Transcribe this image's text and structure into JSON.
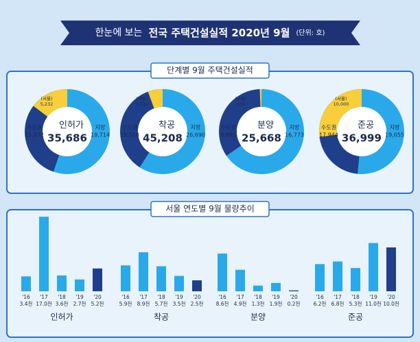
{
  "header": {
    "title_prefix": "한눈에 보는",
    "title_main": "전국 주택건설실적 2020년 9월",
    "unit": "(단위: 호)"
  },
  "colors": {
    "capital": "#1f3f8a",
    "local": "#2aa9ea",
    "seoul": "#f8cf3a",
    "latest": "#1f3f8a"
  },
  "stage_section": {
    "title": "단계별 9월 주택건설실적",
    "stages": [
      {
        "name": "인허가",
        "total": {
          "value": 35686,
          "label": "35,686"
        },
        "capital": {
          "name": "수도권",
          "value": 15972,
          "label": "15,972"
        },
        "local": {
          "name": "지방",
          "value": 19714,
          "label": "19,714"
        },
        "seoul": {
          "name": "(서울)",
          "value": 5232,
          "label": "5,232"
        }
      },
      {
        "name": "착공",
        "total": {
          "value": 45208,
          "label": "45,208"
        },
        "capital": {
          "name": "수도권",
          "value": 18518,
          "label": "18,518"
        },
        "local": {
          "name": "지방",
          "value": 26690,
          "label": "26,690"
        },
        "seoul": {
          "name": "(서울)",
          "value": 2531,
          "label": "2,531"
        }
      },
      {
        "name": "분양",
        "total": {
          "value": 25668,
          "label": "25,668"
        },
        "capital": {
          "name": "수도권",
          "value": 8895,
          "label": "8,895"
        },
        "local": {
          "name": "지방",
          "value": 16773,
          "label": "16,773"
        },
        "seoul": {
          "name": "(서울)",
          "value": 165,
          "label": "165"
        }
      },
      {
        "name": "준공",
        "total": {
          "value": 36999,
          "label": "36,999"
        },
        "capital": {
          "name": "수도권",
          "value": 17944,
          "label": "17,944"
        },
        "local": {
          "name": "지방",
          "value": 19055,
          "label": "19,055"
        },
        "seoul": {
          "name": "(서울)",
          "value": 10000,
          "label": "10,000"
        }
      }
    ]
  },
  "trend_section": {
    "title": "서울 연도별 9월 물량추이",
    "groups": [
      {
        "name": "인허가",
        "years": [
          "'16",
          "'17",
          "'18",
          "'19",
          "'20"
        ],
        "values": [
          3.4,
          17.0,
          3.6,
          2.7,
          5.2
        ],
        "value_labels": [
          "3.4천",
          "17.0천",
          "3.6천",
          "2.7천",
          "5.2천"
        ]
      },
      {
        "name": "착공",
        "years": [
          "'16",
          "'17",
          "'18",
          "'19",
          "'20"
        ],
        "values": [
          5.9,
          8.9,
          5.7,
          3.5,
          2.5
        ],
        "value_labels": [
          "5.9천",
          "8.9천",
          "5.7천",
          "3.5천",
          "2.5천"
        ]
      },
      {
        "name": "분양",
        "years": [
          "'16",
          "'17",
          "'18",
          "'19",
          "'20"
        ],
        "values": [
          8.6,
          4.9,
          1.3,
          1.9,
          0.2
        ],
        "value_labels": [
          "8.6천",
          "4.9천",
          "1.3천",
          "1.9천",
          "0.2천"
        ]
      },
      {
        "name": "준공",
        "years": [
          "'16",
          "'17",
          "'18",
          "'19",
          "'20"
        ],
        "values": [
          6.2,
          6.8,
          5.3,
          11.0,
          10.0
        ],
        "value_labels": [
          "6.2천",
          "6.8천",
          "5.3천",
          "11.0천",
          "10.0천"
        ]
      }
    ]
  }
}
